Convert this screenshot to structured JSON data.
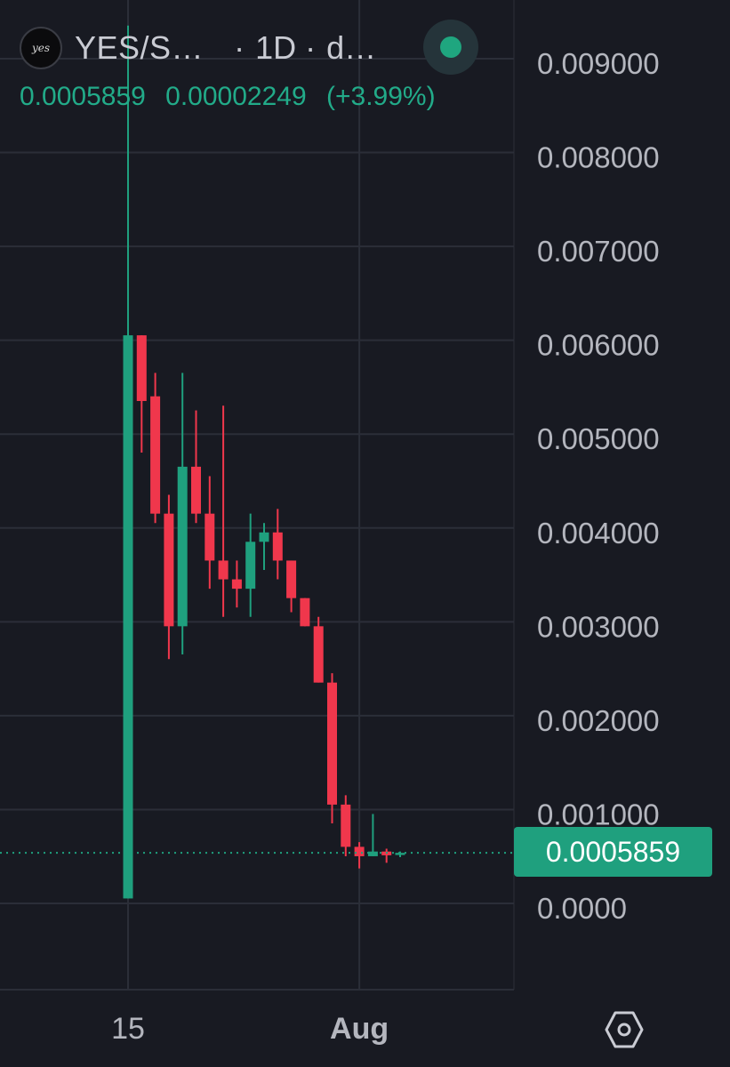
{
  "header": {
    "logo_text": "yes",
    "symbol": "YES/S…",
    "separator": "·",
    "interval": "1D ·",
    "exchange": "d…"
  },
  "quote": {
    "last": "0.0005859",
    "change": "0.00002249",
    "change_pct": "(+3.99%)"
  },
  "price_label": "0.0005859",
  "colors": {
    "background": "#181a22",
    "grid": "#2b2e38",
    "up": "#1fa07e",
    "down": "#f0374c",
    "axis_text": "#b4b6be",
    "price_line": "#1fa07e"
  },
  "icons": {
    "settings": "hexagon-settings-icon",
    "status": "live-status-dot-icon"
  },
  "chart_data": {
    "type": "candlestick",
    "y_tick_labels": [
      "0.009000",
      "0.008000",
      "0.007000",
      "0.006000",
      "0.005000",
      "0.004000",
      "0.003000",
      "0.002000",
      "0.001000",
      "0.0000"
    ],
    "y_ticks": [
      0.009,
      0.008,
      0.007,
      0.006,
      0.005,
      0.004,
      0.003,
      0.002,
      0.001,
      0.0
    ],
    "ylim": [
      -0.0001,
      0.0094
    ],
    "x_tick_labels": [
      {
        "label": "15",
        "index": 0,
        "bold": false
      },
      {
        "label": "Aug",
        "index": 17,
        "bold": true
      }
    ],
    "last_price": 0.0005859,
    "grid": true,
    "candles": [
      {
        "o": 0.0001,
        "h": 0.0094,
        "l": 0.0001,
        "c": 0.0061
      },
      {
        "o": 0.0061,
        "h": 0.0061,
        "l": 0.00485,
        "c": 0.0054
      },
      {
        "o": 0.00545,
        "h": 0.0057,
        "l": 0.0041,
        "c": 0.0042
      },
      {
        "o": 0.0042,
        "h": 0.0044,
        "l": 0.00265,
        "c": 0.003
      },
      {
        "o": 0.003,
        "h": 0.0057,
        "l": 0.0027,
        "c": 0.0047
      },
      {
        "o": 0.0047,
        "h": 0.0053,
        "l": 0.0041,
        "c": 0.0042
      },
      {
        "o": 0.0042,
        "h": 0.0046,
        "l": 0.0034,
        "c": 0.0037
      },
      {
        "o": 0.0037,
        "h": 0.00535,
        "l": 0.0031,
        "c": 0.0035
      },
      {
        "o": 0.0035,
        "h": 0.0037,
        "l": 0.0032,
        "c": 0.0034
      },
      {
        "o": 0.0034,
        "h": 0.0042,
        "l": 0.0031,
        "c": 0.0039
      },
      {
        "o": 0.0039,
        "h": 0.0041,
        "l": 0.0036,
        "c": 0.004
      },
      {
        "o": 0.004,
        "h": 0.00425,
        "l": 0.0035,
        "c": 0.0037
      },
      {
        "o": 0.0037,
        "h": 0.0037,
        "l": 0.00315,
        "c": 0.0033
      },
      {
        "o": 0.0033,
        "h": 0.0033,
        "l": 0.003,
        "c": 0.003
      },
      {
        "o": 0.003,
        "h": 0.0031,
        "l": 0.0024,
        "c": 0.0024
      },
      {
        "o": 0.0024,
        "h": 0.0025,
        "l": 0.0009,
        "c": 0.0011
      },
      {
        "o": 0.0011,
        "h": 0.0012,
        "l": 0.00055,
        "c": 0.00065
      },
      {
        "o": 0.00065,
        "h": 0.0007,
        "l": 0.00042,
        "c": 0.00055
      },
      {
        "o": 0.00055,
        "h": 0.001,
        "l": 0.00055,
        "c": 0.0006
      },
      {
        "o": 0.0006,
        "h": 0.00063,
        "l": 0.00048,
        "c": 0.00056
      },
      {
        "o": 0.000563,
        "h": 0.0006,
        "l": 0.00054,
        "c": 0.0005859
      }
    ]
  }
}
